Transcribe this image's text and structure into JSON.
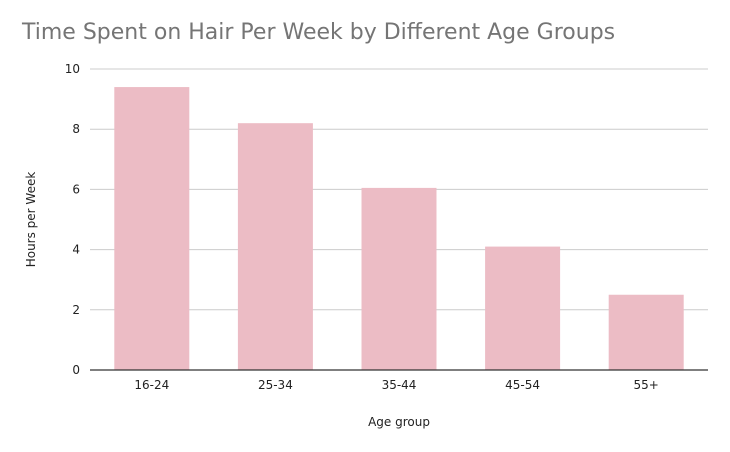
{
  "chart_data": {
    "type": "bar",
    "title": "Time Spent on Hair Per Week by Different Age Groups",
    "xlabel": "Age group",
    "ylabel": "Hours per Week",
    "categories": [
      "16-24",
      "25-34",
      "35-44",
      "45-54",
      "55+"
    ],
    "values": [
      9.4,
      8.2,
      6.05,
      4.1,
      2.5
    ],
    "ylim": [
      0,
      10
    ],
    "yticks": [
      "0",
      "2",
      "4",
      "6",
      "8",
      "10"
    ],
    "grid": true,
    "legend": "none",
    "colors": {
      "bar": "#ecbcc5",
      "grid": "#cccccc",
      "axis": "#333333",
      "title": "#757575"
    }
  }
}
